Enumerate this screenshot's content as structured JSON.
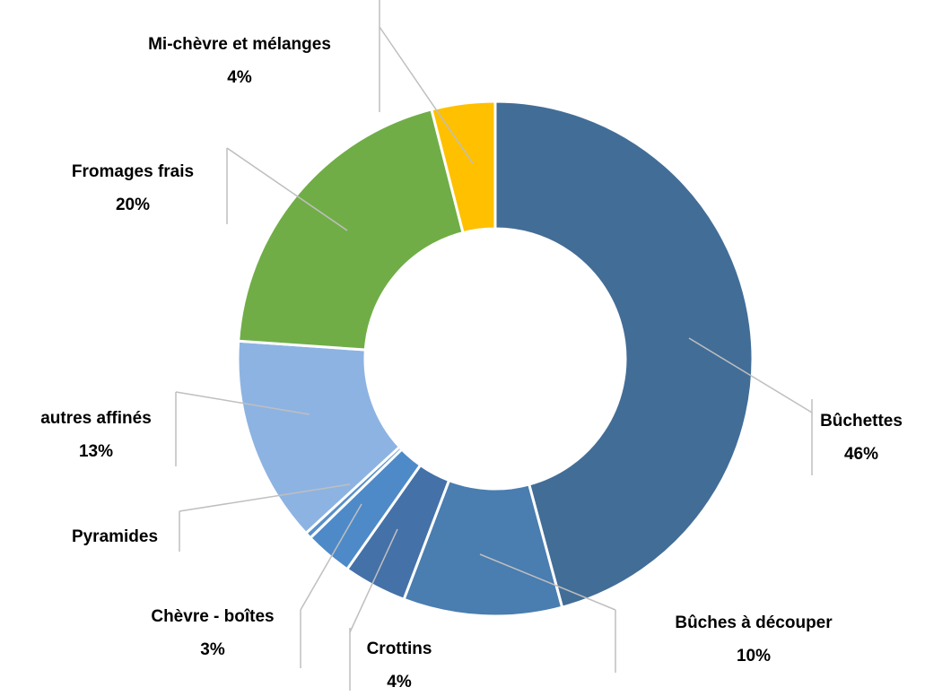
{
  "chart_data": {
    "type": "donut",
    "categories": [
      "Bûchettes",
      "Bûches à découper",
      "Crottins",
      "Chèvre - boîtes",
      "Pyramides",
      "autres affinés",
      "Fromages frais",
      "Mi-chèvre et mélanges"
    ],
    "values": [
      46,
      10,
      4,
      3,
      0.4,
      13,
      20,
      4
    ],
    "value_labels": [
      "46%",
      "10%",
      "4%",
      "3%",
      null,
      "13%",
      "20%",
      "4%"
    ],
    "colors": [
      "#426d97",
      "#4a7db0",
      "#4471a8",
      "#4e8ac8",
      "#5a90c8",
      "#8db3e2",
      "#70ad47",
      "#ffc000"
    ]
  }
}
